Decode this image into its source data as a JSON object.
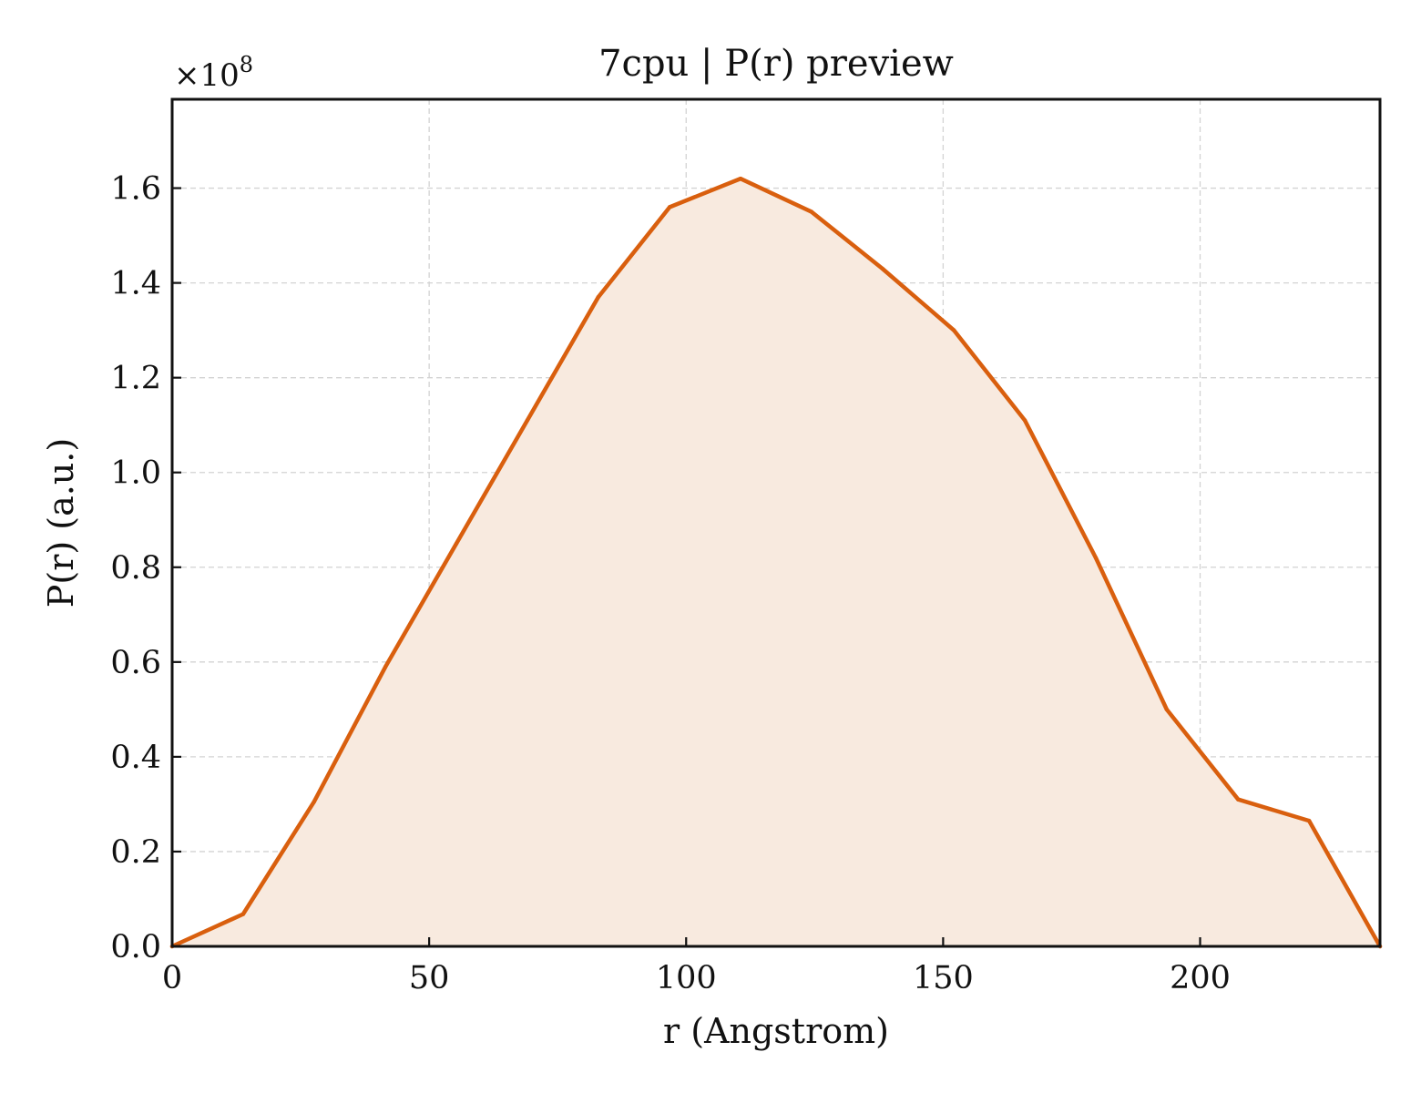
{
  "chart_data": {
    "type": "area",
    "title": "7cpu | P(r) preview",
    "xlabel": "r (Angstrom)",
    "ylabel": "P(r) (a.u.)",
    "y_multiplier": "×10",
    "y_multiplier_exponent": "8",
    "xlim": [
      0,
      235
    ],
    "ylim": [
      0,
      1.7875
    ],
    "x_ticks": [
      0,
      50,
      100,
      150,
      200
    ],
    "x_tick_labels": [
      "0",
      "50",
      "100",
      "150",
      "200"
    ],
    "y_ticks": [
      0,
      0.2,
      0.4,
      0.6,
      0.8,
      1.0,
      1.2,
      1.4,
      1.6
    ],
    "y_tick_labels": [
      "0.0",
      "0.2",
      "0.4",
      "0.6",
      "0.8",
      "1.0",
      "1.2",
      "1.4",
      "1.6"
    ],
    "grid": true,
    "legend": "none",
    "series": [
      {
        "color": "#d95f0e",
        "fill_color": "#f8eadf",
        "x": [
          0,
          13.8,
          27.6,
          41.5,
          55.3,
          69.1,
          82.9,
          96.8,
          110.6,
          124.4,
          138.2,
          152.1,
          165.9,
          179.7,
          193.5,
          207.4,
          221.2,
          235
        ],
        "y": [
          0.0,
          0.068,
          0.305,
          0.59,
          0.85,
          1.11,
          1.37,
          1.56,
          1.62,
          1.55,
          1.43,
          1.3,
          1.11,
          0.82,
          0.5,
          0.31,
          0.265,
          0.0
        ]
      }
    ]
  }
}
